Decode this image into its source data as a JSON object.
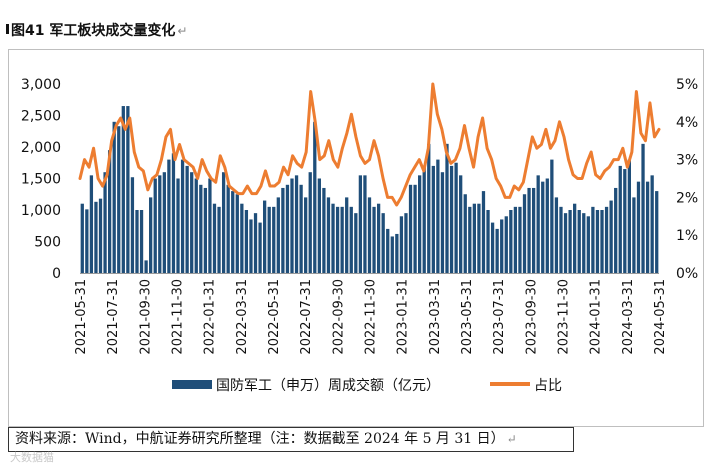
{
  "figure": {
    "title": "图41  军工板块成交量变化",
    "source": "资料来源：Wind，中航证券研究所整理（注：数据截至 2024 年 5 月 31 日）",
    "watermark": "大数据猫"
  },
  "chart_data": {
    "type": "bar+line",
    "left_axis": {
      "ticks": [
        "0",
        "500",
        "1,000",
        "1,500",
        "2,000",
        "2,500",
        "3,000"
      ],
      "ylim": [
        0,
        3000
      ]
    },
    "right_axis": {
      "ticks": [
        "0%",
        "1%",
        "2%",
        "3%",
        "4%",
        "5%"
      ],
      "ylim": [
        0,
        5
      ]
    },
    "x_tick_labels": [
      "2021-05-31",
      "2021-07-31",
      "2021-09-30",
      "2021-11-30",
      "2022-01-31",
      "2022-03-31",
      "2022-05-31",
      "2022-07-31",
      "2022-09-30",
      "2022-11-30",
      "2023-01-31",
      "2023-03-31",
      "2023-05-31",
      "2023-07-31",
      "2023-09-30",
      "2023-11-30",
      "2024-01-31",
      "2024-03-31",
      "2024-05-31"
    ],
    "series": [
      {
        "name": "国防军工（申万）周成交额（亿元）",
        "type": "bar",
        "color": "#1f4e79",
        "values": [
          1100,
          1010,
          1550,
          1130,
          1180,
          1600,
          1950,
          2400,
          2330,
          2650,
          2650,
          1520,
          1000,
          1000,
          200,
          1200,
          1500,
          1550,
          1600,
          1800,
          1900,
          1500,
          1800,
          1700,
          1600,
          1500,
          1400,
          1350,
          1500,
          1100,
          1050,
          1600,
          1400,
          1300,
          1250,
          1100,
          1000,
          850,
          950,
          800,
          1150,
          1050,
          1050,
          1200,
          1350,
          1400,
          1500,
          1550,
          1400,
          1200,
          1600,
          2400,
          1500,
          1350,
          1200,
          1100,
          1050,
          1050,
          1200,
          1050,
          950,
          1550,
          1550,
          1200,
          1050,
          1100,
          950,
          700,
          580,
          620,
          900,
          950,
          1400,
          1400,
          1550,
          1700,
          2050,
          1700,
          1800,
          1600,
          2050,
          1700,
          1750,
          1550,
          1250,
          1050,
          1100,
          1100,
          1300,
          1000,
          800,
          700,
          850,
          900,
          1000,
          1050,
          1050,
          1250,
          1350,
          1350,
          1550,
          1450,
          1500,
          1800,
          1200,
          1050,
          950,
          1000,
          1100,
          1000,
          950,
          900,
          1050,
          1000,
          1000,
          1050,
          1150,
          1350,
          1700,
          1650,
          1800,
          1200,
          1450,
          2050,
          1450,
          1550,
          1300
        ]
      },
      {
        "name": "占比",
        "type": "line",
        "color": "#ed7d31",
        "values": [
          2.5,
          3.0,
          2.8,
          3.3,
          2.5,
          2.3,
          2.6,
          3.5,
          3.9,
          4.1,
          3.8,
          4.1,
          3.2,
          2.8,
          2.7,
          2.2,
          2.5,
          2.6,
          3.0,
          3.6,
          3.8,
          3.0,
          3.4,
          3.0,
          2.9,
          2.8,
          2.5,
          3.0,
          2.7,
          2.5,
          2.4,
          3.1,
          2.8,
          2.3,
          2.2,
          2.1,
          2.1,
          2.3,
          2.1,
          2.1,
          2.3,
          2.7,
          2.3,
          2.3,
          2.4,
          2.8,
          2.6,
          3.1,
          2.9,
          2.8,
          3.2,
          4.8,
          4.0,
          3.0,
          3.1,
          3.5,
          3.0,
          2.8,
          3.3,
          3.7,
          4.2,
          3.6,
          3.1,
          2.9,
          3.0,
          3.5,
          3.1,
          2.5,
          2.0,
          2.0,
          1.8,
          2.0,
          2.3,
          2.6,
          2.8,
          3.0,
          2.7,
          3.3,
          5.0,
          4.2,
          3.8,
          3.2,
          2.9,
          3.0,
          3.3,
          3.9,
          3.3,
          2.8,
          3.6,
          4.1,
          3.3,
          3.0,
          2.5,
          2.3,
          2.0,
          2.0,
          2.3,
          2.2,
          2.4,
          3.0,
          3.6,
          3.3,
          3.4,
          3.8,
          3.3,
          3.5,
          4.0,
          3.6,
          3.0,
          2.6,
          2.5,
          2.5,
          2.9,
          3.2,
          2.6,
          2.5,
          2.7,
          2.8,
          3.0,
          3.0,
          3.3,
          2.8,
          3.2,
          4.8,
          3.7,
          3.5,
          4.5,
          3.6,
          3.8
        ]
      }
    ]
  }
}
